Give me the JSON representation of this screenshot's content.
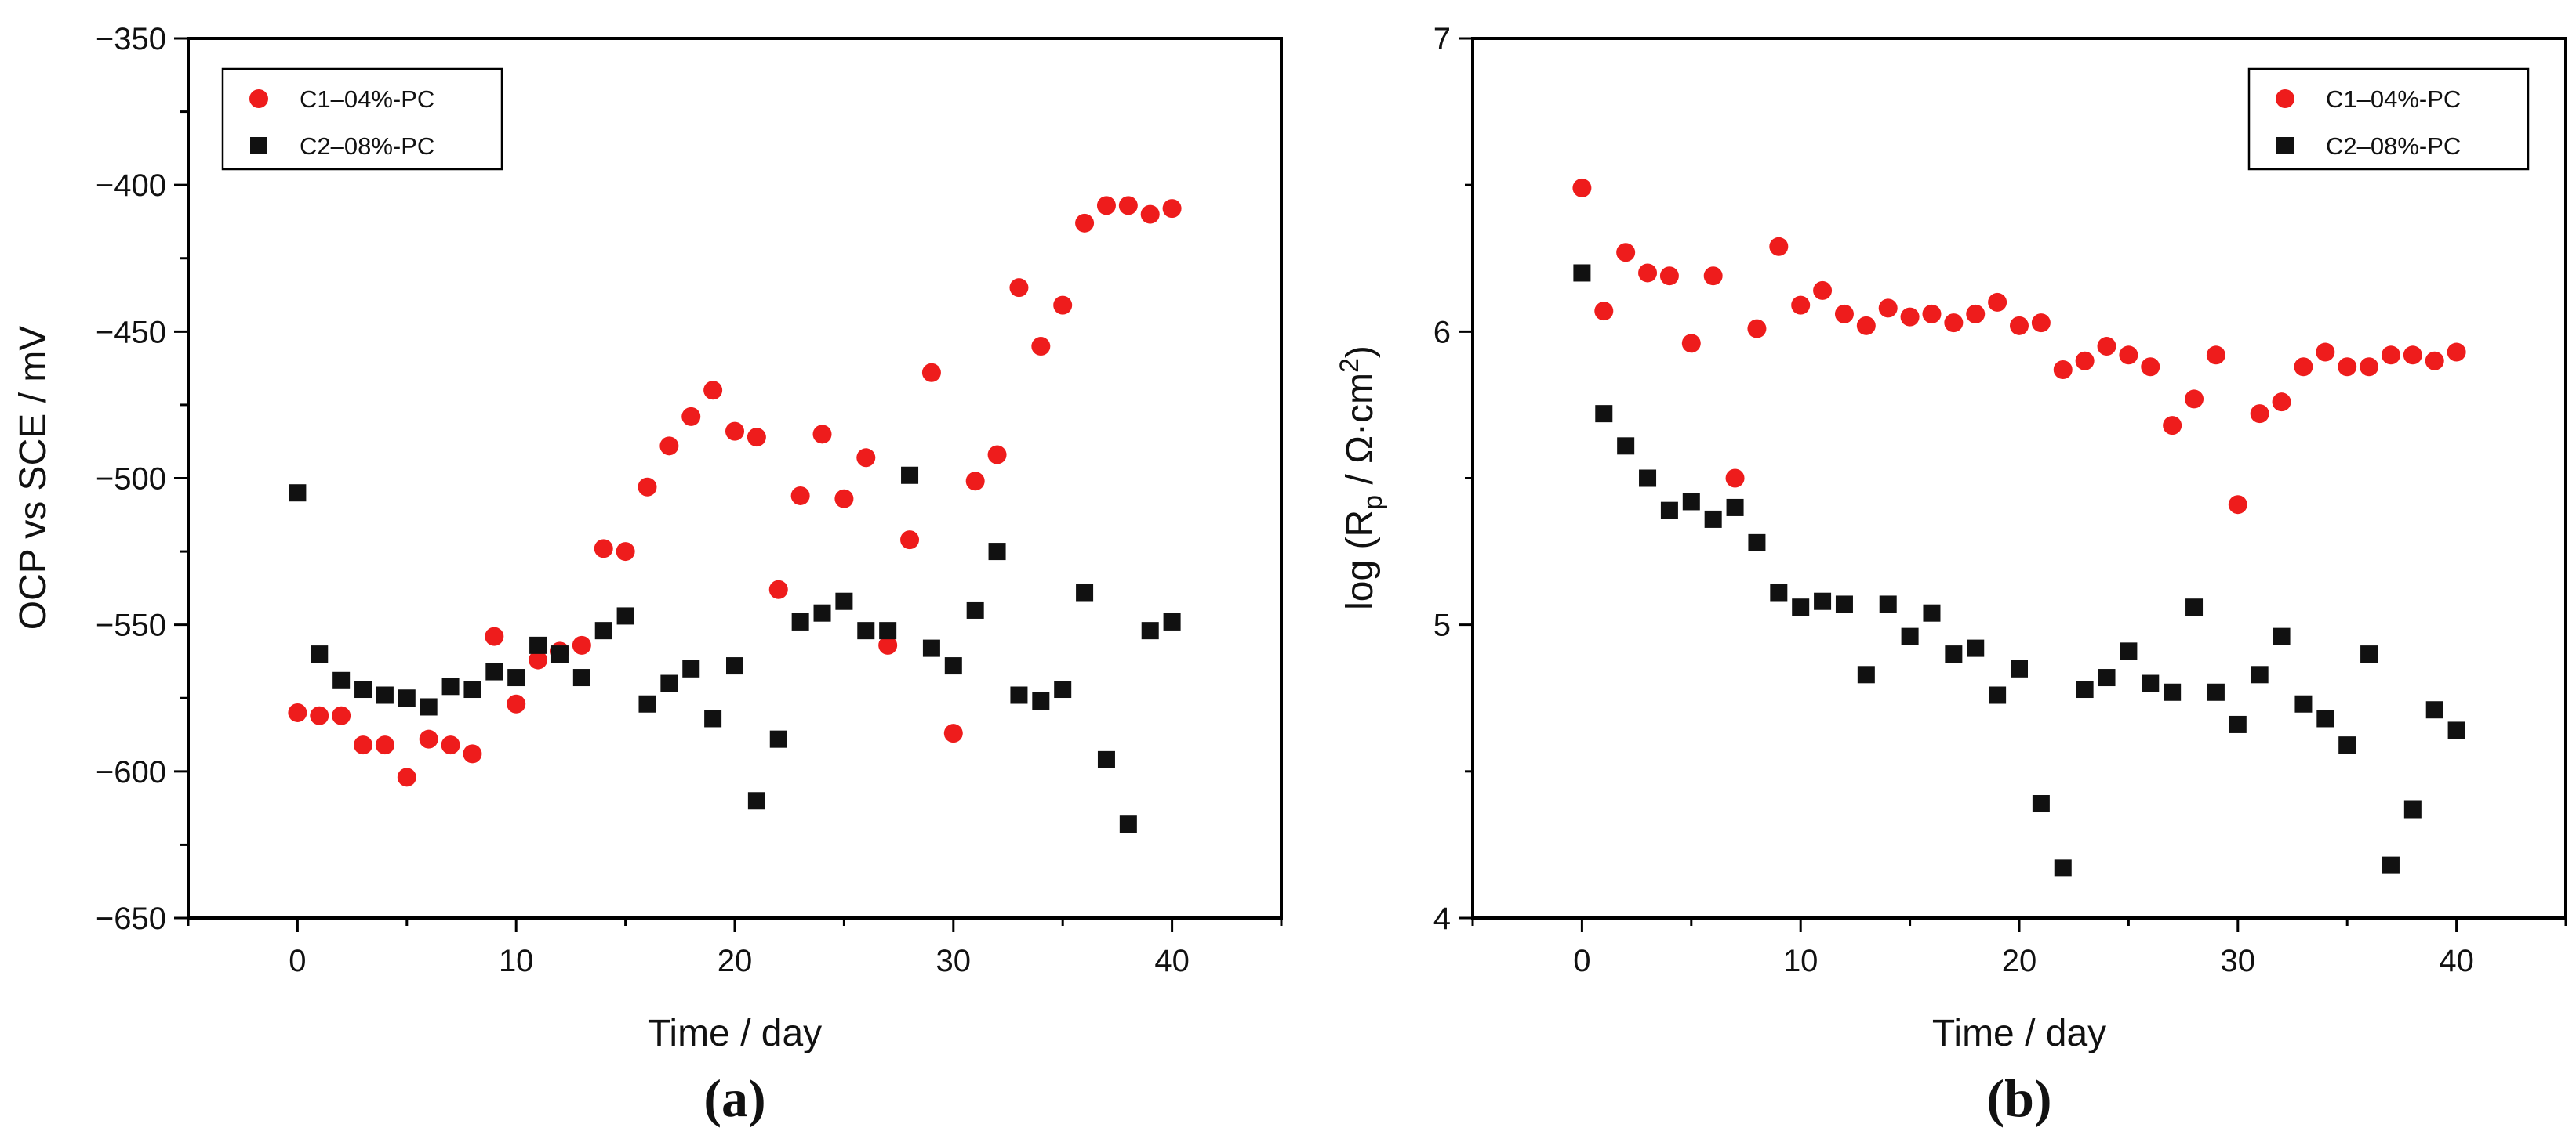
{
  "figure": {
    "panel_a_label": "(a)",
    "panel_b_label": "(b)"
  },
  "colors": {
    "c1": "#ee1c1c",
    "c2": "#111111",
    "axis": "#000000"
  },
  "chart_data": [
    {
      "type": "scatter",
      "panel": "(a)",
      "xlabel": "Time / day",
      "ylabel": "OCP vs SCE / mV",
      "xlim": [
        -5,
        45
      ],
      "ylim": [
        -650,
        -350
      ],
      "xticks": [
        0,
        10,
        20,
        30,
        40
      ],
      "yticks": [
        -650,
        -600,
        -550,
        -500,
        -450,
        -400,
        -350
      ],
      "ytick_labels": [
        "−650",
        "−600",
        "−550",
        "−500",
        "−450",
        "−400",
        "−350"
      ],
      "legend_position": "top-left",
      "series": [
        {
          "name": "C1–04%-PC",
          "marker": "circle",
          "color": "#ee1c1c",
          "x": [
            0,
            1,
            2,
            3,
            4,
            5,
            6,
            7,
            8,
            9,
            10,
            11,
            12,
            13,
            14,
            15,
            16,
            17,
            18,
            19,
            20,
            21,
            22,
            23,
            24,
            25,
            26,
            27,
            28,
            29,
            30,
            31,
            32,
            33,
            34,
            35,
            36,
            37,
            38,
            39,
            40
          ],
          "y": [
            -580,
            -581,
            -581,
            -591,
            -591,
            -602,
            -589,
            -591,
            -594,
            -554,
            -577,
            -562,
            -559,
            -557,
            -524,
            -525,
            -503,
            -489,
            -479,
            -470,
            -484,
            -486,
            -538,
            -506,
            -485,
            -507,
            -493,
            -557,
            -521,
            -464,
            -587,
            -501,
            -492,
            -435,
            -455,
            -441,
            -413,
            -407,
            -407,
            -410,
            -408
          ]
        },
        {
          "name": "C2–08%-PC",
          "marker": "square",
          "color": "#111111",
          "x": [
            0,
            1,
            2,
            3,
            4,
            5,
            6,
            7,
            8,
            9,
            10,
            11,
            12,
            13,
            14,
            15,
            16,
            17,
            18,
            19,
            20,
            21,
            22,
            23,
            24,
            25,
            26,
            27,
            28,
            29,
            30,
            31,
            32,
            33,
            34,
            35,
            36,
            37,
            38,
            39,
            40
          ],
          "y": [
            -505,
            -560,
            -569,
            -572,
            -574,
            -575,
            -578,
            -571,
            -572,
            -566,
            -568,
            -557,
            -560,
            -568,
            -552,
            -547,
            -577,
            -570,
            -565,
            -582,
            -564,
            -610,
            -589,
            -549,
            -546,
            -542,
            -552,
            -552,
            -499,
            -558,
            -564,
            -545,
            -525,
            -574,
            -576,
            -572,
            -539,
            -596,
            -618,
            -552,
            -549
          ]
        }
      ]
    },
    {
      "type": "scatter",
      "panel": "(b)",
      "xlabel": "Time / day",
      "ylabel_prefix": "log (R",
      "ylabel_sub": "p",
      "ylabel_mid": " / Ω·cm",
      "ylabel_sup": "2",
      "ylabel_suffix": ")",
      "xlim": [
        -5,
        45
      ],
      "ylim": [
        4,
        7
      ],
      "xticks": [
        0,
        10,
        20,
        30,
        40
      ],
      "yticks": [
        4,
        5,
        6,
        7
      ],
      "ytick_labels": [
        "4",
        "5",
        "6",
        "7"
      ],
      "legend_position": "top-right",
      "series": [
        {
          "name": "C1–04%-PC",
          "marker": "circle",
          "color": "#ee1c1c",
          "x": [
            0,
            1,
            2,
            3,
            4,
            5,
            6,
            7,
            8,
            9,
            10,
            11,
            12,
            13,
            14,
            15,
            16,
            17,
            18,
            19,
            20,
            21,
            22,
            23,
            24,
            25,
            26,
            27,
            28,
            29,
            30,
            31,
            32,
            33,
            34,
            35,
            36,
            37,
            38,
            39,
            40
          ],
          "y": [
            6.49,
            6.07,
            6.27,
            6.2,
            6.19,
            5.96,
            6.19,
            5.5,
            6.01,
            6.29,
            6.09,
            6.14,
            6.06,
            6.02,
            6.08,
            6.05,
            6.06,
            6.03,
            6.06,
            6.1,
            6.02,
            6.03,
            5.87,
            5.9,
            5.95,
            5.92,
            5.88,
            5.68,
            5.77,
            5.92,
            5.41,
            5.72,
            5.76,
            5.88,
            5.93,
            5.88,
            5.88,
            5.92,
            5.92,
            5.9,
            5.93
          ]
        },
        {
          "name": "C2–08%-PC",
          "marker": "square",
          "color": "#111111",
          "x": [
            0,
            1,
            2,
            3,
            4,
            5,
            6,
            7,
            8,
            9,
            10,
            11,
            12,
            13,
            14,
            15,
            16,
            17,
            18,
            19,
            20,
            21,
            22,
            23,
            24,
            25,
            26,
            27,
            28,
            29,
            30,
            31,
            32,
            33,
            34,
            35,
            36,
            37,
            38,
            39,
            40
          ],
          "y": [
            6.2,
            5.72,
            5.61,
            5.5,
            5.39,
            5.42,
            5.36,
            5.4,
            5.28,
            5.11,
            5.06,
            5.08,
            5.07,
            4.83,
            5.07,
            4.96,
            5.04,
            4.9,
            4.92,
            4.76,
            4.85,
            4.39,
            4.17,
            4.78,
            4.82,
            4.91,
            4.8,
            4.77,
            5.06,
            4.77,
            4.66,
            4.83,
            4.96,
            4.73,
            4.68,
            4.59,
            4.9,
            4.18,
            4.37,
            4.71,
            4.64
          ]
        }
      ]
    }
  ]
}
